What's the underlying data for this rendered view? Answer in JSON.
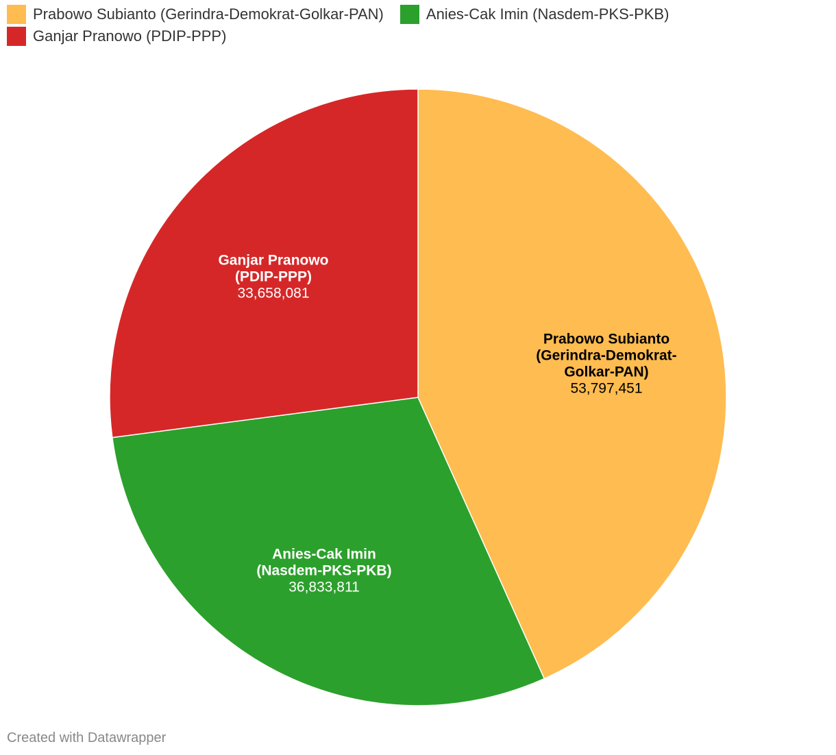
{
  "legend": [
    {
      "label": "Prabowo Subianto (Gerindra-Demokrat-Golkar-PAN)",
      "color": "#FFBC50"
    },
    {
      "label": "Anies-Cak Imin (Nasdem-PKS-PKB)",
      "color": "#2CA02C"
    },
    {
      "label": "Ganjar Pranowo (PDIP-PPP)",
      "color": "#D62728"
    }
  ],
  "chart_data": {
    "type": "pie",
    "start": "12 o'clock",
    "direction": "clockwise",
    "slices": [
      {
        "name": "Prabowo Subianto (Gerindra-Demokrat-Golkar-PAN)",
        "label_lines": [
          "Prabowo Subianto",
          "(Gerindra-Demokrat-",
          "Golkar-PAN)"
        ],
        "value": 53797451,
        "value_label": "53,797,451",
        "color": "#FFBC50",
        "label_color": "#000000"
      },
      {
        "name": "Anies-Cak Imin (Nasdem-PKS-PKB)",
        "label_lines": [
          "Anies-Cak Imin",
          "(Nasdem-PKS-PKB)"
        ],
        "value": 36833811,
        "value_label": "36,833,811",
        "color": "#2CA02C",
        "label_color": "#ffffff"
      },
      {
        "name": "Ganjar Pranowo (PDIP-PPP)",
        "label_lines": [
          "Ganjar Pranowo",
          "(PDIP-PPP)"
        ],
        "value": 33658081,
        "value_label": "33,658,081",
        "color": "#D62728",
        "label_color": "#ffffff"
      }
    ]
  },
  "footer": {
    "credit": "Created with Datawrapper"
  }
}
